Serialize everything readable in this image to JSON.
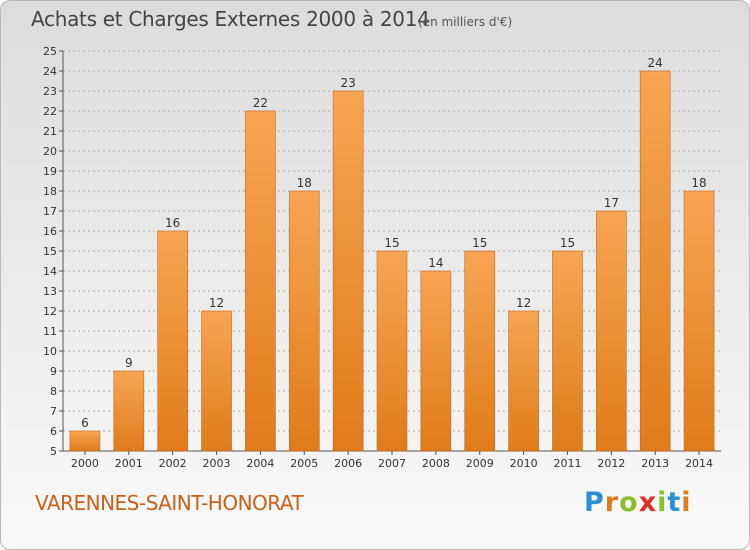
{
  "title": "Achats et Charges Externes 2000 à 2014",
  "unit": "(en milliers d'€)",
  "town": "VARENNES-SAINT-HONORAT",
  "logo": {
    "text": "Proxiti",
    "letters": [
      "P",
      "r",
      "o",
      "x",
      "i",
      "t",
      "i"
    ],
    "colors": [
      "#2a8fd6",
      "#e07b1a",
      "#8bbf2b",
      "#d9302c",
      "#8bbf2b",
      "#2a8fd6",
      "#e07b1a"
    ]
  },
  "colors": {
    "bar_top": "#f7a553",
    "bar_bottom": "#e07b1a",
    "bar_edge": "#c96814",
    "grid": "#b0b0b0",
    "axis": "#555555"
  },
  "chart_data": {
    "type": "bar",
    "categories": [
      "2000",
      "2001",
      "2002",
      "2003",
      "2004",
      "2005",
      "2006",
      "2007",
      "2008",
      "2009",
      "2010",
      "2011",
      "2012",
      "2013",
      "2014"
    ],
    "values": [
      6,
      9,
      16,
      12,
      22,
      18,
      23,
      15,
      14,
      15,
      12,
      15,
      17,
      24,
      18
    ],
    "ylim": [
      5,
      25
    ],
    "yticks": [
      5,
      6,
      7,
      8,
      9,
      10,
      11,
      12,
      13,
      14,
      15,
      16,
      17,
      18,
      19,
      20,
      21,
      22,
      23,
      24,
      25
    ],
    "grid": true,
    "data_labels": true,
    "title": "Achats et Charges Externes 2000 à 2014",
    "xlabel": "",
    "ylabel": ""
  }
}
